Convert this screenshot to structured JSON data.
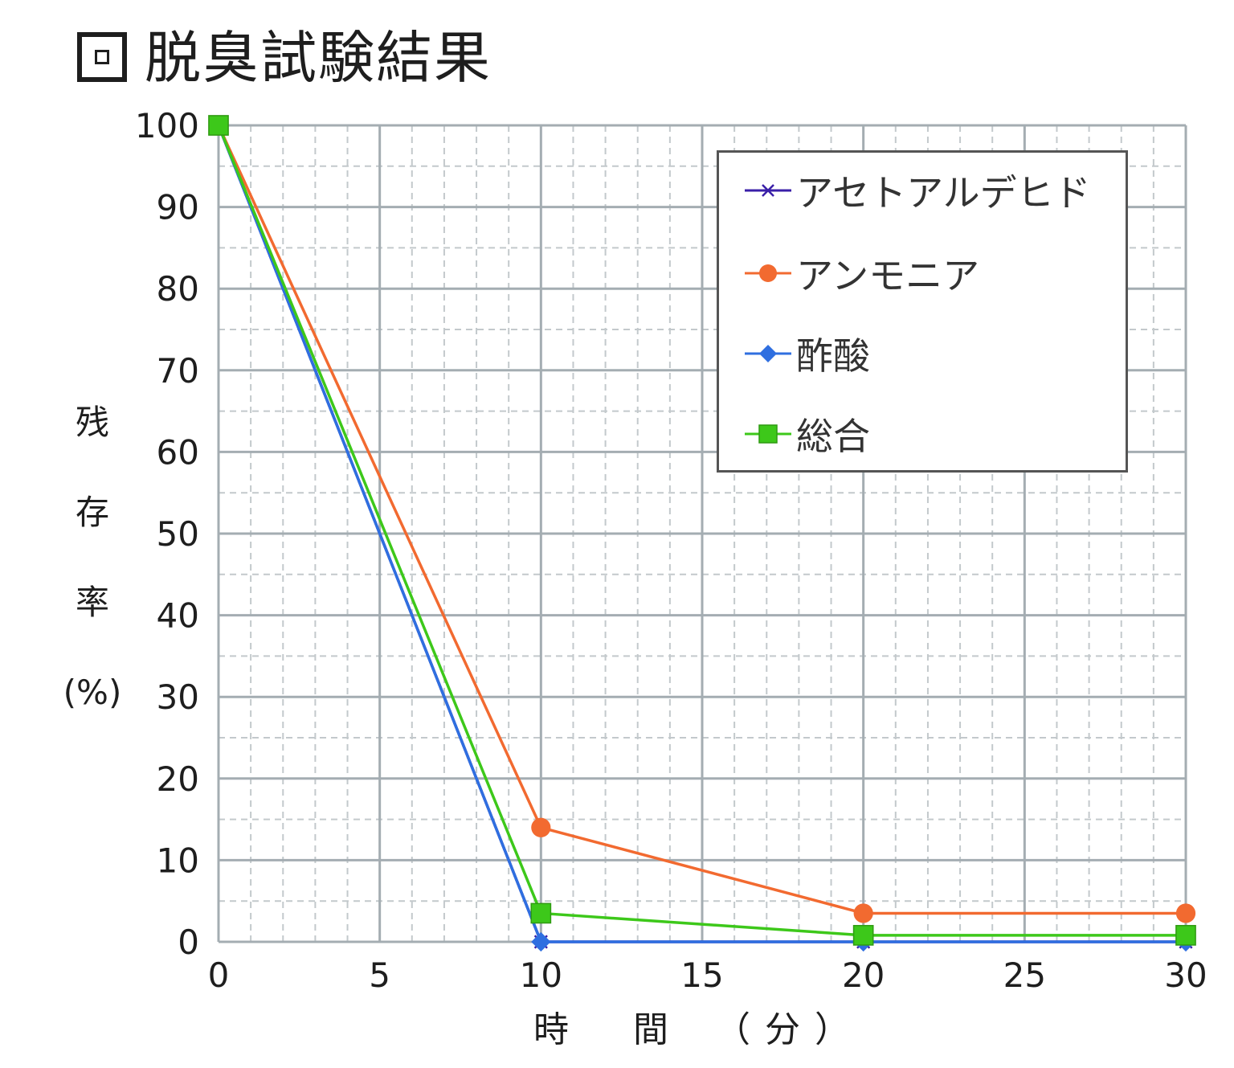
{
  "chart_data": {
    "type": "line",
    "title": "脱臭試験結果",
    "xlabel": "時　間　（分）",
    "ylabel_chars": [
      "残",
      "存",
      "率",
      "(%)"
    ],
    "x": [
      0,
      10,
      20,
      30
    ],
    "xlim": [
      0,
      30
    ],
    "ylim": [
      0,
      100
    ],
    "xticks": [
      0,
      5,
      10,
      15,
      20,
      25,
      30
    ],
    "yticks": [
      0,
      10,
      20,
      30,
      40,
      50,
      60,
      70,
      80,
      90,
      100
    ],
    "grid": true,
    "legend_position": "top-right",
    "series": [
      {
        "name": "アセトアルデヒド",
        "values": [
          100,
          0,
          0,
          0
        ],
        "color": "#3a1fa8",
        "marker": "x"
      },
      {
        "name": "アンモニア",
        "values": [
          100,
          14,
          3.5,
          3.5
        ],
        "color": "#f26a30",
        "marker": "circle"
      },
      {
        "name": "酢酸",
        "values": [
          100,
          0,
          0,
          0
        ],
        "color": "#2f6fe0",
        "marker": "diamond"
      },
      {
        "name": "総合",
        "values": [
          100,
          3.5,
          0.8,
          0.8
        ],
        "color": "#3dc81a",
        "marker": "square"
      }
    ]
  }
}
